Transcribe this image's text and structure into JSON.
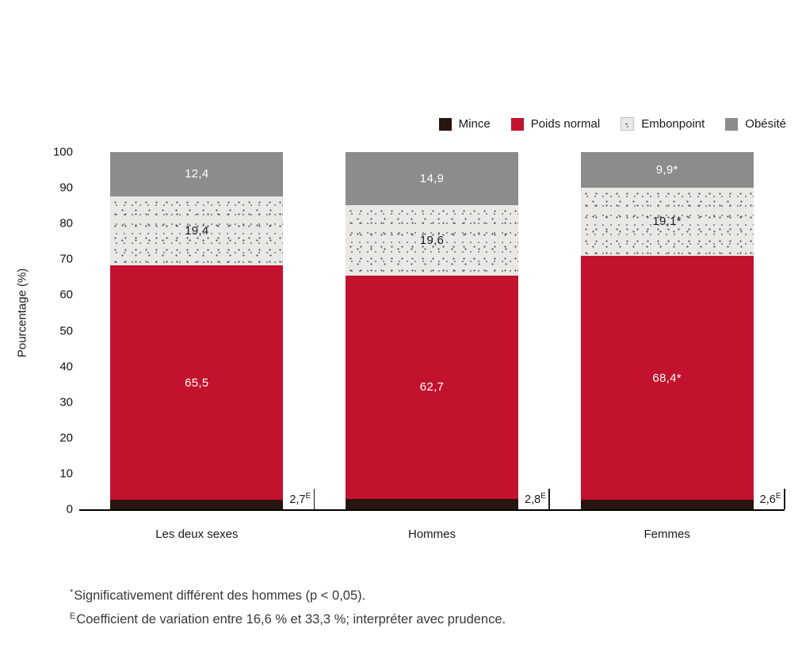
{
  "chart_data": {
    "type": "bar",
    "stacked": true,
    "title": "",
    "ylabel": "Pourcentage (%)",
    "ylim": [
      0,
      100
    ],
    "yticks": [
      0,
      10,
      20,
      30,
      40,
      50,
      60,
      70,
      80,
      90,
      100
    ],
    "grid": false,
    "legend_position": "top-right",
    "categories": [
      "Les deux sexes",
      "Hommes",
      "Femmes"
    ],
    "series": [
      {
        "name": "Mince",
        "color": "#26160e",
        "labels_position": "outside-right",
        "values": [
          2.7,
          2.8,
          2.6
        ],
        "labels": [
          {
            "text": "2,7",
            "sup": "E"
          },
          {
            "text": "2,8",
            "sup": "E"
          },
          {
            "text": "2,6",
            "sup": "E"
          }
        ]
      },
      {
        "name": "Poids normal",
        "color": "#c2122e",
        "label_color": "#ffffff",
        "labels_position": "inside",
        "values": [
          65.5,
          62.7,
          68.4
        ],
        "labels": [
          {
            "text": "65,5",
            "sup": ""
          },
          {
            "text": "62,7",
            "sup": ""
          },
          {
            "text": "68,4*",
            "sup": ""
          }
        ]
      },
      {
        "name": "Embonpoint",
        "color": "#eae8e5",
        "pattern": "dots",
        "pattern_color": "#4d4d4d",
        "label_color": "#1a1a1a",
        "labels_position": "inside",
        "values": [
          19.4,
          19.6,
          19.1
        ],
        "labels": [
          {
            "text": "19,4",
            "sup": ""
          },
          {
            "text": "19,6",
            "sup": ""
          },
          {
            "text": "19,1*",
            "sup": ""
          }
        ]
      },
      {
        "name": "Obésité",
        "color": "#8c8c8c",
        "label_color": "#ffffff",
        "labels_position": "inside",
        "values": [
          12.4,
          14.9,
          9.9
        ],
        "labels": [
          {
            "text": "12,4",
            "sup": ""
          },
          {
            "text": "14,9",
            "sup": ""
          },
          {
            "text": "9,9*",
            "sup": ""
          }
        ]
      }
    ]
  },
  "footnotes": [
    {
      "sup": "*",
      "text": "Significativement différent des hommes (p < 0,05)."
    },
    {
      "sup": "E",
      "text": "Coefficient de variation entre 16,6 % et 33,3 %; interpréter avec prudence."
    }
  ]
}
